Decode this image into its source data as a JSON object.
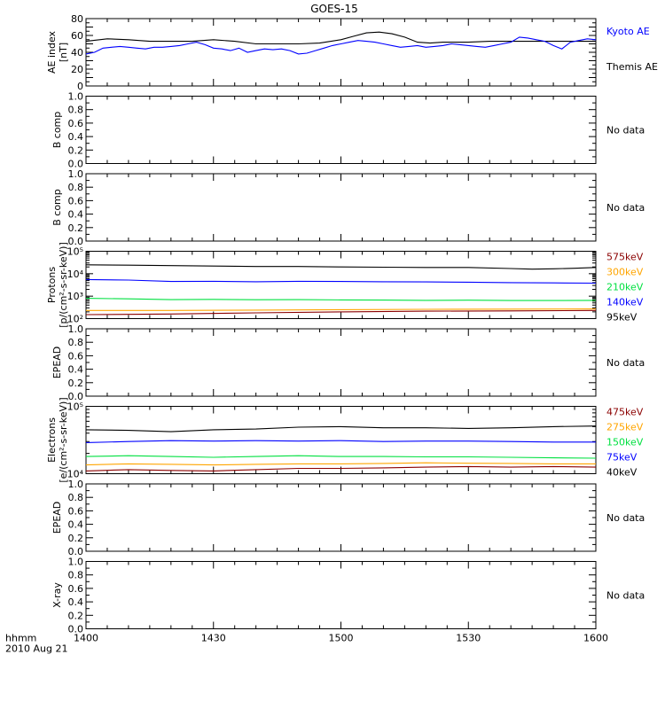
{
  "title": "GOES-15",
  "x_axis": {
    "ticks": [
      "1400",
      "1430",
      "1500",
      "1530",
      "1600"
    ],
    "tick_minutes": [
      0,
      30,
      60,
      90,
      120
    ],
    "range_minutes": [
      0,
      120
    ],
    "label_line1": "hhmm",
    "label_line2": "2010 Aug 21"
  },
  "no_data_text": "No data",
  "colors": {
    "black": "#000000",
    "blue": "#0000ff",
    "green": "#00e040",
    "orange": "#ffa500",
    "darkred": "#8b0000"
  },
  "chart_data": [
    {
      "id": "ae",
      "type": "line",
      "ylabel_line1": "AE index",
      "ylabel_line2": "[nT]",
      "ylim": [
        0,
        80
      ],
      "scale": "linear",
      "ytick_values": [
        0,
        10,
        20,
        30,
        40,
        50,
        60,
        70,
        80
      ],
      "ytick_labels": [
        "0",
        "",
        "20",
        "",
        "40",
        "",
        "60",
        "",
        "80"
      ],
      "legend": [
        {
          "name": "Kyoto AE",
          "color": "#0000ff"
        },
        {
          "name": "Themis AE",
          "color": "#000000"
        }
      ],
      "series": [
        {
          "name": "Themis AE",
          "color": "#000000",
          "x": [
            0,
            5,
            10,
            15,
            20,
            25,
            30,
            35,
            40,
            45,
            50,
            55,
            60,
            63,
            66,
            69,
            72,
            75,
            78,
            81,
            84,
            90,
            95,
            100,
            105,
            110,
            115,
            120
          ],
          "y": [
            53,
            56,
            55,
            53,
            53,
            53,
            55,
            53,
            50,
            50,
            50,
            51,
            55,
            59,
            63,
            64,
            62,
            58,
            52,
            51,
            52,
            52,
            53,
            53,
            53,
            53,
            53,
            53
          ]
        },
        {
          "name": "Kyoto AE",
          "color": "#0000ff",
          "x": [
            0,
            2,
            4,
            6,
            8,
            10,
            12,
            14,
            16,
            18,
            20,
            22,
            24,
            26,
            28,
            30,
            32,
            34,
            36,
            38,
            40,
            42,
            44,
            46,
            48,
            50,
            52,
            54,
            56,
            58,
            60,
            62,
            64,
            66,
            68,
            70,
            72,
            74,
            76,
            78,
            80,
            82,
            84,
            86,
            88,
            90,
            92,
            94,
            96,
            98,
            100,
            102,
            104,
            106,
            108,
            110,
            112,
            114,
            116,
            118,
            120
          ],
          "y": [
            38,
            40,
            45,
            46,
            47,
            46,
            45,
            44,
            46,
            46,
            47,
            48,
            50,
            52,
            49,
            45,
            44,
            42,
            45,
            40,
            42,
            44,
            43,
            44,
            42,
            38,
            39,
            42,
            45,
            48,
            50,
            52,
            54,
            53,
            52,
            50,
            48,
            46,
            47,
            48,
            46,
            47,
            48,
            50,
            49,
            48,
            47,
            46,
            48,
            50,
            52,
            58,
            57,
            55,
            53,
            48,
            44,
            52,
            54,
            56,
            55
          ]
        }
      ]
    },
    {
      "id": "bcomp1",
      "type": "line",
      "ylabel_line1": "B comp",
      "ylim": [
        0,
        1
      ],
      "scale": "linear",
      "ytick_values": [
        0,
        0.2,
        0.4,
        0.6,
        0.8,
        1.0
      ],
      "ytick_labels": [
        "0.0",
        "0.2",
        "0.4",
        "0.6",
        "0.8",
        "1.0"
      ],
      "no_data": true,
      "series": []
    },
    {
      "id": "bcomp2",
      "type": "line",
      "ylabel_line1": "B comp",
      "ylim": [
        0,
        1
      ],
      "scale": "linear",
      "ytick_values": [
        0,
        0.2,
        0.4,
        0.6,
        0.8,
        1.0
      ],
      "ytick_labels": [
        "0.0",
        "0.2",
        "0.4",
        "0.6",
        "0.8",
        "1.0"
      ],
      "no_data": true,
      "series": []
    },
    {
      "id": "protons",
      "type": "line",
      "ylabel_line1": "Protons",
      "ylabel_line2": "[p/(cm²-s-sr-keV)]",
      "ylim": [
        100,
        100000
      ],
      "scale": "log",
      "ytick_values": [
        100,
        1000,
        10000,
        100000
      ],
      "ytick_labels": [
        "10²",
        "10³",
        "10⁴",
        "10⁵"
      ],
      "legend": [
        {
          "name": "575keV",
          "color": "#8b0000"
        },
        {
          "name": "300keV",
          "color": "#ffa500"
        },
        {
          "name": "210keV",
          "color": "#00e040"
        },
        {
          "name": "140keV",
          "color": "#0000ff"
        },
        {
          "name": "95keV",
          "color": "#000000"
        }
      ],
      "series": [
        {
          "name": "95keV",
          "color": "#000000",
          "x": [
            0,
            10,
            20,
            30,
            40,
            50,
            60,
            70,
            80,
            90,
            100,
            105,
            110,
            115,
            120
          ],
          "y": [
            25000,
            24000,
            23000,
            22000,
            21000,
            21000,
            20000,
            19500,
            19000,
            19000,
            17000,
            16000,
            16500,
            17500,
            19000
          ]
        },
        {
          "name": "140keV",
          "color": "#0000ff",
          "x": [
            0,
            10,
            20,
            30,
            40,
            50,
            60,
            70,
            80,
            90,
            100,
            110,
            120
          ],
          "y": [
            5500,
            5200,
            4500,
            4600,
            4400,
            4600,
            4500,
            4400,
            4300,
            4200,
            4000,
            3900,
            3800
          ]
        },
        {
          "name": "210keV",
          "color": "#00e040",
          "x": [
            0,
            10,
            20,
            30,
            40,
            50,
            60,
            70,
            80,
            90,
            100,
            110,
            120
          ],
          "y": [
            800,
            760,
            700,
            720,
            690,
            700,
            680,
            670,
            650,
            660,
            640,
            640,
            650
          ]
        },
        {
          "name": "300keV",
          "color": "#ffa500",
          "x": [
            0,
            20,
            40,
            60,
            80,
            100,
            120
          ],
          "y": [
            230,
            230,
            240,
            250,
            260,
            265,
            270
          ]
        },
        {
          "name": "575keV",
          "color": "#8b0000",
          "x": [
            0,
            20,
            40,
            60,
            80,
            100,
            120
          ],
          "y": [
            150,
            160,
            180,
            200,
            215,
            220,
            230
          ]
        }
      ]
    },
    {
      "id": "epead1",
      "type": "line",
      "ylabel_line1": "EPEAD",
      "ylim": [
        0,
        1
      ],
      "scale": "linear",
      "ytick_values": [
        0,
        0.2,
        0.4,
        0.6,
        0.8,
        1.0
      ],
      "ytick_labels": [
        "0.0",
        "0.2",
        "0.4",
        "0.6",
        "0.8",
        "1.0"
      ],
      "no_data": true,
      "series": []
    },
    {
      "id": "electrons",
      "type": "line",
      "ylabel_line1": "Electrons",
      "ylabel_line2": "[e/(cm²-s-sr-keV)]",
      "ylim": [
        10000,
        100000
      ],
      "scale": "log",
      "ytick_values": [
        10000,
        100000
      ],
      "ytick_labels": [
        "10⁴",
        "10⁵"
      ],
      "legend": [
        {
          "name": "475keV",
          "color": "#8b0000"
        },
        {
          "name": "275keV",
          "color": "#ffa500"
        },
        {
          "name": "150keV",
          "color": "#00e040"
        },
        {
          "name": "75keV",
          "color": "#0000ff"
        },
        {
          "name": "40keV",
          "color": "#000000"
        }
      ],
      "series": [
        {
          "name": "40keV",
          "color": "#000000",
          "x": [
            0,
            10,
            20,
            30,
            40,
            50,
            60,
            70,
            80,
            90,
            100,
            110,
            120
          ],
          "y": [
            45000,
            44000,
            42000,
            45000,
            46000,
            49000,
            50000,
            48000,
            48000,
            47000,
            48000,
            50000,
            51000
          ]
        },
        {
          "name": "75keV",
          "color": "#0000ff",
          "x": [
            0,
            10,
            20,
            30,
            40,
            50,
            60,
            70,
            80,
            90,
            100,
            110,
            120
          ],
          "y": [
            29000,
            30000,
            31000,
            30500,
            31000,
            30500,
            31000,
            30000,
            30500,
            30500,
            30000,
            29500,
            29500
          ]
        },
        {
          "name": "150keV",
          "color": "#00e040",
          "x": [
            0,
            10,
            20,
            30,
            40,
            50,
            60,
            70,
            80,
            90,
            100,
            110,
            120
          ],
          "y": [
            18000,
            18500,
            18000,
            17500,
            18000,
            18500,
            18000,
            18000,
            17800,
            17800,
            17500,
            17200,
            17000
          ]
        },
        {
          "name": "275keV",
          "color": "#ffa500",
          "x": [
            0,
            10,
            20,
            30,
            40,
            50,
            60,
            70,
            80,
            90,
            100,
            110,
            120
          ],
          "y": [
            13500,
            14000,
            13800,
            13500,
            13800,
            14000,
            14000,
            14200,
            14500,
            14300,
            14200,
            14000,
            14000
          ]
        },
        {
          "name": "475keV",
          "color": "#8b0000",
          "x": [
            0,
            10,
            20,
            30,
            40,
            50,
            60,
            70,
            80,
            90,
            100,
            110,
            120
          ],
          "y": [
            11000,
            11500,
            11200,
            11000,
            11500,
            12000,
            12000,
            12200,
            12500,
            12800,
            12500,
            12800,
            12500
          ]
        }
      ]
    },
    {
      "id": "epead2",
      "type": "line",
      "ylabel_line1": "EPEAD",
      "ylim": [
        0,
        1
      ],
      "scale": "linear",
      "ytick_values": [
        0,
        0.2,
        0.4,
        0.6,
        0.8,
        1.0
      ],
      "ytick_labels": [
        "0.0",
        "0.2",
        "0.4",
        "0.6",
        "0.8",
        "1.0"
      ],
      "no_data": true,
      "series": []
    },
    {
      "id": "xray",
      "type": "line",
      "ylabel_line1": "X-ray",
      "ylim": [
        0,
        1
      ],
      "scale": "linear",
      "ytick_values": [
        0,
        0.2,
        0.4,
        0.6,
        0.8,
        1.0
      ],
      "ytick_labels": [
        "0.0",
        "0.2",
        "0.4",
        "0.6",
        "0.8",
        "1.0"
      ],
      "no_data": true,
      "series": []
    }
  ]
}
